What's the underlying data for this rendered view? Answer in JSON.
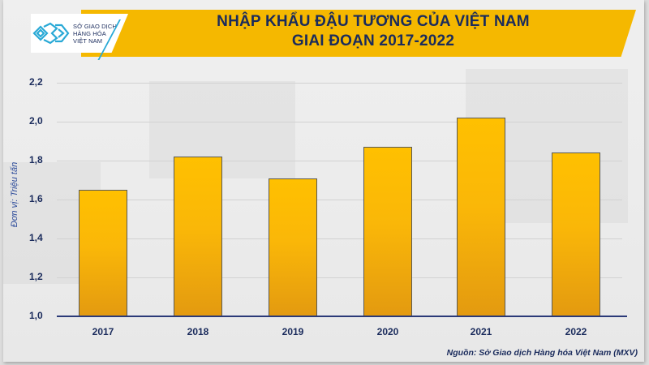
{
  "header": {
    "logo_text": [
      "SỞ GIAO DỊCH",
      "HÀNG HÓA",
      "VIỆT NAM"
    ],
    "title_line1": "NHẬP KHẨU ĐẬU TƯƠNG CỦA VIỆT NAM",
    "title_line2": "GIAI ĐOẠN 2017-2022",
    "banner_color": "#f5b800",
    "title_color": "#1a2b5c"
  },
  "chart": {
    "ylabel": "Đơn vị: Triệu tấn",
    "yticks": [
      "2,2",
      "2,0",
      "1,8",
      "1,6",
      "1,4",
      "1,2",
      "1,0"
    ],
    "xticks": [
      "2017",
      "2018",
      "2019",
      "2020",
      "2021",
      "2022"
    ],
    "source": "Nguồn: Sở Giao dịch Hàng hóa Việt Nam (MXV)",
    "bar_color_top": "#ffc000",
    "bar_color_bottom": "#e39a10"
  },
  "chart_data": {
    "type": "bar",
    "title": "NHẬP KHẨU ĐẬU TƯƠNG CỦA VIỆT NAM GIAI ĐOẠN 2017-2022",
    "categories": [
      "2017",
      "2018",
      "2019",
      "2020",
      "2021",
      "2022"
    ],
    "values": [
      1.65,
      1.82,
      1.71,
      1.87,
      2.02,
      1.84
    ],
    "xlabel": "",
    "ylabel": "Đơn vị: Triệu tấn",
    "ylim": [
      1.0,
      2.2
    ],
    "yticks": [
      1.0,
      1.2,
      1.4,
      1.6,
      1.8,
      2.0,
      2.2
    ],
    "grid": true,
    "legend": null,
    "source": "Nguồn: Sở Giao dịch Hàng hóa Việt Nam (MXV)"
  }
}
